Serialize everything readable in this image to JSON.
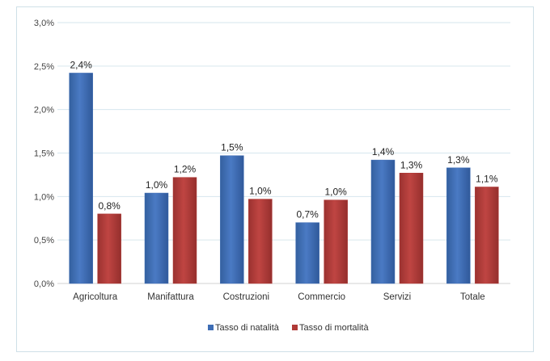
{
  "chart_data": {
    "type": "bar",
    "categories": [
      "Agricoltura",
      "Manifattura",
      "Costruzioni",
      "Commercio",
      "Servizi",
      "Totale"
    ],
    "series": [
      {
        "name": "Tasso di natalità",
        "color": "#3e6db5",
        "values": [
          2.42,
          1.04,
          1.47,
          0.7,
          1.42,
          1.33
        ],
        "labels": [
          "2,4%",
          "1,0%",
          "1,5%",
          "0,7%",
          "1,4%",
          "1,3%"
        ]
      },
      {
        "name": "Tasso di mortalità",
        "color": "#b03a37",
        "values": [
          0.8,
          1.22,
          0.97,
          0.96,
          1.27,
          1.11
        ],
        "labels": [
          "0,8%",
          "1,2%",
          "1,0%",
          "1,0%",
          "1,3%",
          "1,1%"
        ]
      }
    ],
    "yticks": [
      "0,0%",
      "0,5%",
      "1,0%",
      "1,5%",
      "2,0%",
      "2,5%",
      "3,0%"
    ],
    "ylim": [
      0,
      3
    ],
    "grid": true,
    "legend_position": "bottom"
  }
}
